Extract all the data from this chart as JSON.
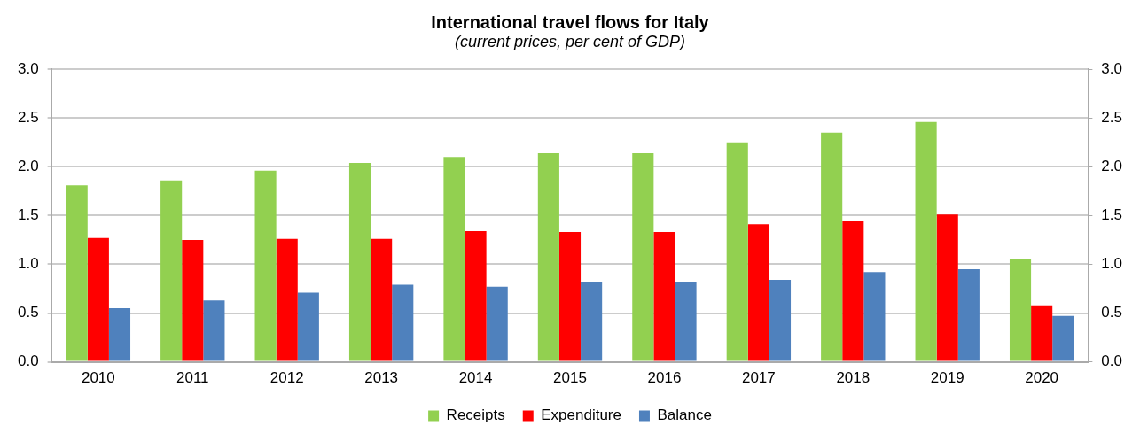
{
  "chart_data": {
    "type": "bar",
    "title": "International travel flows for Italy",
    "subtitle": "(current prices, per cent of GDP)",
    "categories": [
      "2010",
      "2011",
      "2012",
      "2013",
      "2014",
      "2015",
      "2016",
      "2017",
      "2018",
      "2019",
      "2020"
    ],
    "series": [
      {
        "name": "Receipts",
        "color": "#92d050",
        "values": [
          1.81,
          1.86,
          1.96,
          2.04,
          2.1,
          2.14,
          2.14,
          2.25,
          2.35,
          2.46,
          1.05
        ]
      },
      {
        "name": "Expenditure",
        "color": "#ff0000",
        "values": [
          1.27,
          1.25,
          1.26,
          1.26,
          1.34,
          1.33,
          1.33,
          1.41,
          1.45,
          1.51,
          0.58
        ]
      },
      {
        "name": "Balance",
        "color": "#4f81bd",
        "values": [
          0.55,
          0.63,
          0.71,
          0.79,
          0.77,
          0.82,
          0.82,
          0.84,
          0.92,
          0.95,
          0.47
        ]
      }
    ],
    "ylim": [
      0,
      3
    ],
    "yticks": [
      {
        "value": 0,
        "label": "0.0"
      },
      {
        "value": 0.5,
        "label": "0.5"
      },
      {
        "value": 1,
        "label": "1.0"
      },
      {
        "value": 1.5,
        "label": "1.5"
      },
      {
        "value": 2,
        "label": "2.0"
      },
      {
        "value": 2.5,
        "label": "2.5"
      },
      {
        "value": 3,
        "label": "3.0"
      }
    ],
    "y2lim": [
      0,
      3
    ],
    "y2ticks": [
      {
        "value": 0,
        "label": "0.0"
      },
      {
        "value": 0.5,
        "label": "0.5"
      },
      {
        "value": 1,
        "label": "1.0"
      },
      {
        "value": 1.5,
        "label": "1.5"
      },
      {
        "value": 2,
        "label": "2.0"
      },
      {
        "value": 2.5,
        "label": "2.5"
      },
      {
        "value": 3,
        "label": "3.0"
      }
    ],
    "grid": "y",
    "legend": "bottom"
  }
}
